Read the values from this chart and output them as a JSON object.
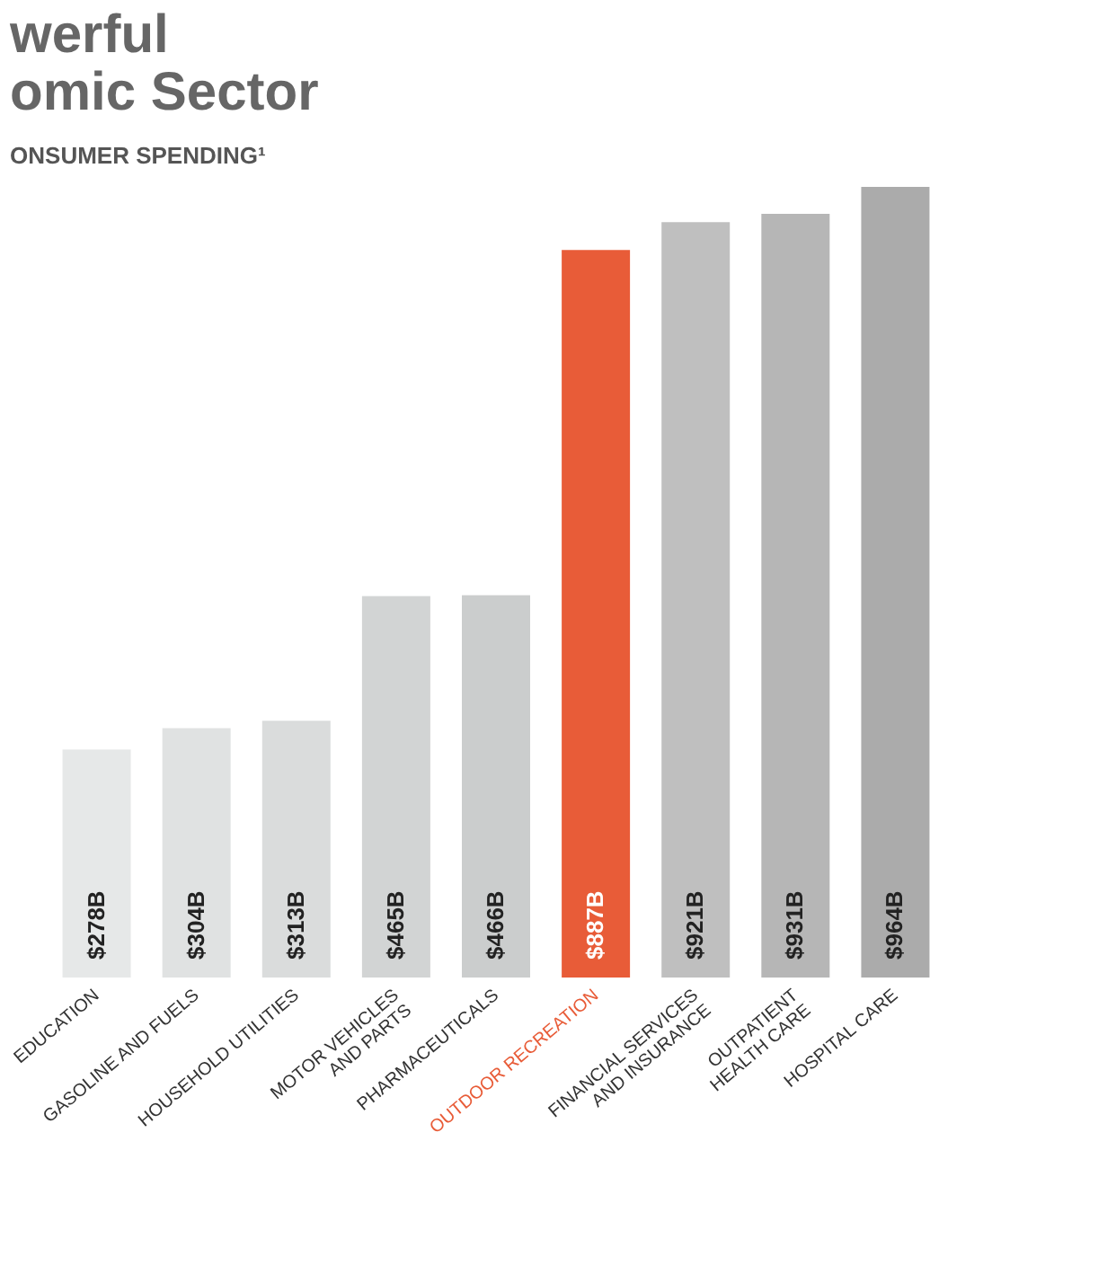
{
  "chart_data": {
    "type": "bar",
    "title": "werful\nomic Sector",
    "subtitle": "ONSUMER SPENDING¹",
    "categories": [
      "EDUCATION",
      "GASOLINE AND FUELS",
      "HOUSEHOLD UTILITIES",
      "MOTOR VEHICLES\nAND PARTS",
      "PHARMACEUTICALS",
      "OUTDOOR RECREATION",
      "FINANCIAL SERVICES\nAND INSURANCE",
      "OUTPATIENT\nHEALTH CARE",
      "HOSPITAL CARE"
    ],
    "values": [
      278,
      304,
      313,
      465,
      466,
      887,
      921,
      931,
      964
    ],
    "value_labels": [
      "$278B",
      "$304B",
      "$313B",
      "$465B",
      "$466B",
      "$887B",
      "$921B",
      "$931B",
      "$964B"
    ],
    "colors": [
      "#e6e8e8",
      "#e0e2e2",
      "#dadcdc",
      "#d2d4d4",
      "#cbcdcd",
      "#e85c38",
      "#bfbfbf",
      "#b6b6b6",
      "#ababab"
    ],
    "grid": false
  }
}
